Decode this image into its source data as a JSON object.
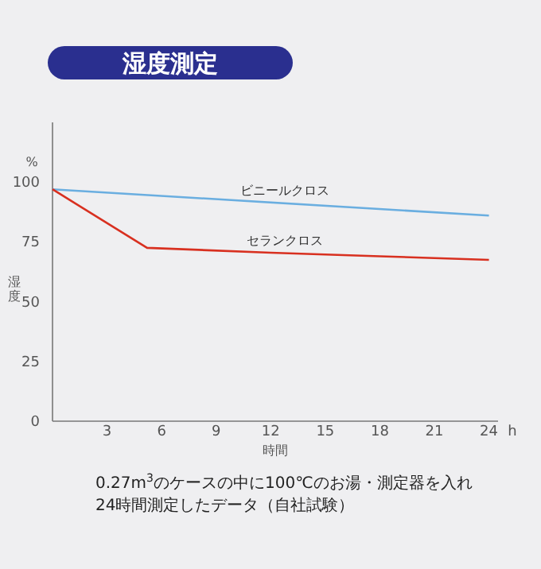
{
  "chart_data": {
    "type": "line",
    "title": "湿度測定",
    "xlabel": "時間",
    "ylabel": "湿度",
    "xlim": [
      0,
      24.5
    ],
    "ylim": [
      0,
      125
    ],
    "xticks": [
      3,
      6,
      9,
      12,
      15,
      18,
      21,
      24
    ],
    "yticks": [
      0,
      25,
      50,
      75,
      100
    ],
    "series": [
      {
        "name": "ビニールクロス",
        "color": "#6aaee0",
        "x": [
          0,
          24
        ],
        "values": [
          97,
          86
        ]
      },
      {
        "name": "セランクロス",
        "color": "#d83020",
        "x": [
          0,
          5.2,
          12,
          18,
          24
        ],
        "values": [
          97,
          72.5,
          70.5,
          69,
          67.5
        ]
      }
    ],
    "annotations": [
      "%",
      "h",
      "0.27m$^{3}$のケースの中に100℃のお湯・測定器を入れ",
      "24時間測定したデータ（自社試験）"
    ]
  }
}
